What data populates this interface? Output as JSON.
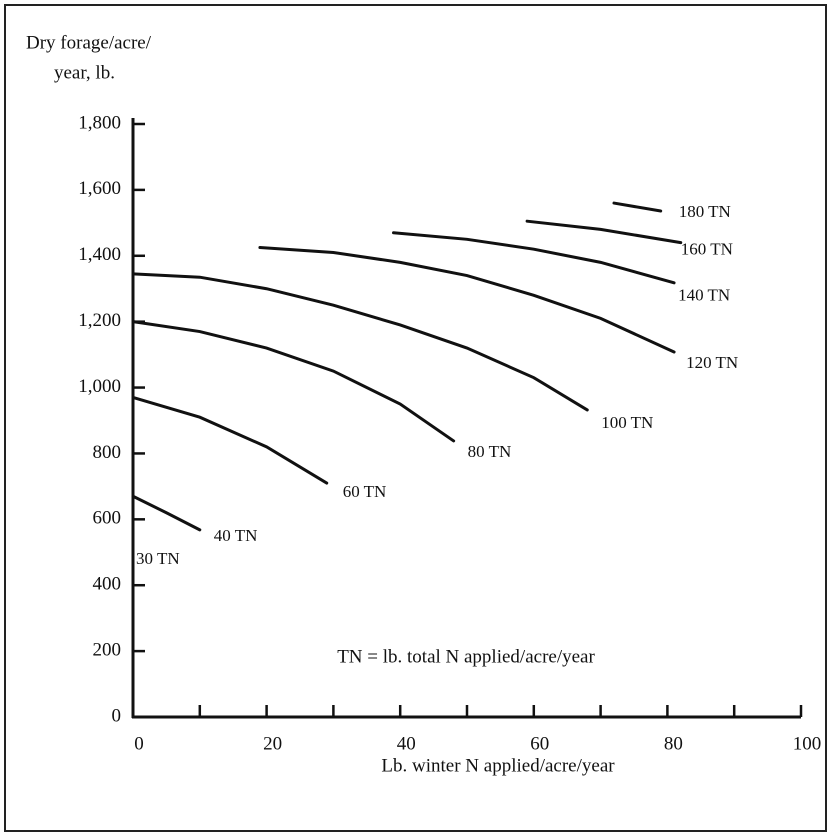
{
  "chart_data": {
    "type": "line",
    "ylabel": [
      "Dry forage/acre/",
      "year, lb."
    ],
    "xlabel": "Lb. winter N applied/acre/year",
    "annotations": [
      "30 TN",
      "TN = lb. total N applied/acre/year"
    ],
    "color": "#111111",
    "xlim": [
      0,
      100
    ],
    "xticks": [
      0,
      20,
      40,
      60,
      80,
      100
    ],
    "xminor_ticks": [
      10,
      30,
      50,
      70,
      90
    ],
    "ylim": [
      0,
      1800
    ],
    "yticks": [
      0,
      200,
      400,
      600,
      800,
      {
        "value": 1000,
        "label": "1,000"
      },
      {
        "value": 1200,
        "label": "1,200"
      },
      {
        "value": 1400,
        "label": "1,400"
      },
      {
        "value": 1600,
        "label": "1,600"
      },
      {
        "value": 1800,
        "label": "1,800"
      }
    ],
    "series": [
      {
        "name": "40 TN",
        "x": [
          0,
          5,
          10
        ],
        "values": [
          670,
          620,
          568
        ]
      },
      {
        "name": "60 TN",
        "x": [
          0,
          10,
          20,
          29
        ],
        "values": [
          970,
          910,
          820,
          710
        ]
      },
      {
        "name": "80 TN",
        "x": [
          0,
          10,
          20,
          30,
          40,
          48
        ],
        "values": [
          1200,
          1170,
          1120,
          1050,
          950,
          838
        ]
      },
      {
        "name": "100 TN",
        "x": [
          0,
          10,
          20,
          30,
          40,
          50,
          60,
          68
        ],
        "values": [
          1345,
          1335,
          1300,
          1250,
          1190,
          1120,
          1030,
          932
        ]
      },
      {
        "name": "120 TN",
        "x": [
          19,
          30,
          40,
          50,
          60,
          70,
          81
        ],
        "values": [
          1425,
          1410,
          1380,
          1340,
          1280,
          1210,
          1108
        ]
      },
      {
        "name": "140 TN",
        "x": [
          39,
          50,
          60,
          70,
          81
        ],
        "values": [
          1470,
          1450,
          1420,
          1380,
          1318
        ]
      },
      {
        "name": "160 TN",
        "x": [
          59,
          70,
          82
        ],
        "values": [
          1505,
          1480,
          1440
        ]
      },
      {
        "name": "180 TN",
        "x": [
          72,
          79
        ],
        "values": [
          1560,
          1536
        ]
      }
    ]
  }
}
